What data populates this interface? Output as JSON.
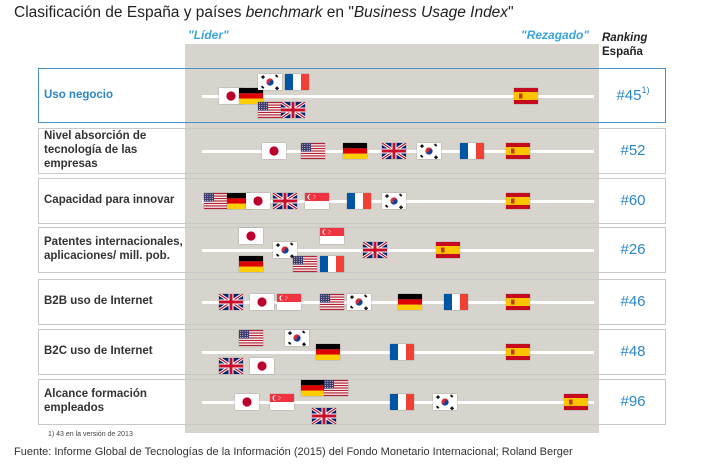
{
  "title": {
    "prefix": "Clasificación de España y países ",
    "italic1": "benchmark",
    "middle": " en \"",
    "italic2": "Business Usage Index",
    "suffix": "\""
  },
  "header": {
    "leader_label": "\"Líder\"",
    "laggard_label": "\"Rezagado\"",
    "ranking_line1": "Ranking",
    "ranking_line2": "España"
  },
  "footnote": "1) 43 en la versión de 2013",
  "source": "Fuente: Informe Global de Tecnologías de la Información (2015) del Fondo Monetario Internacional; Roland Berger",
  "colors": {
    "accent": "#2a86c7",
    "header_accent": "#3aa3dc",
    "panel": "#d7d4cd",
    "highlight_border": "#4a90c8"
  },
  "country_icons": {
    "jp": "japan-flag-icon",
    "de": "germany-flag-icon",
    "kr": "south-korea-flag-icon",
    "us": "usa-flag-icon",
    "fr": "france-flag-icon",
    "gb": "uk-flag-icon",
    "es": "spain-flag-icon",
    "sg": "singapore-flag-icon"
  },
  "chart_data": {
    "type": "scatter",
    "x_axis": "posición relativa de izquierda (\"Líder\") a derecha (\"Rezagado\")",
    "rows": [
      {
        "label": "Uso negocio",
        "rank": "#45",
        "rank_note": "1)",
        "highlight": true,
        "countries": [
          {
            "code": "jp",
            "pos": 0.07,
            "lane": 1
          },
          {
            "code": "de",
            "pos": 0.12,
            "lane": 1
          },
          {
            "code": "kr",
            "pos": 0.17,
            "lane": 0
          },
          {
            "code": "us",
            "pos": 0.17,
            "lane": 2
          },
          {
            "code": "fr",
            "pos": 0.24,
            "lane": 0
          },
          {
            "code": "gb",
            "pos": 0.23,
            "lane": 2
          },
          {
            "code": "es",
            "pos": 0.83,
            "lane": 1
          }
        ]
      },
      {
        "label": "Nivel absorción de tecnología de las empresas",
        "rank": "#52",
        "rank_note": "",
        "highlight": false,
        "countries": [
          {
            "code": "jp",
            "pos": 0.18,
            "lane": 1
          },
          {
            "code": "us",
            "pos": 0.28,
            "lane": 1
          },
          {
            "code": "de",
            "pos": 0.39,
            "lane": 1
          },
          {
            "code": "gb",
            "pos": 0.49,
            "lane": 1
          },
          {
            "code": "kr",
            "pos": 0.58,
            "lane": 1
          },
          {
            "code": "fr",
            "pos": 0.69,
            "lane": 1
          },
          {
            "code": "es",
            "pos": 0.81,
            "lane": 1
          }
        ]
      },
      {
        "label": "Capacidad para innovar",
        "rank": "#60",
        "rank_note": "",
        "highlight": false,
        "countries": [
          {
            "code": "us",
            "pos": 0.03,
            "lane": 1
          },
          {
            "code": "de",
            "pos": 0.09,
            "lane": 1
          },
          {
            "code": "jp",
            "pos": 0.14,
            "lane": 1
          },
          {
            "code": "gb",
            "pos": 0.21,
            "lane": 1
          },
          {
            "code": "sg",
            "pos": 0.29,
            "lane": 1
          },
          {
            "code": "fr",
            "pos": 0.4,
            "lane": 1
          },
          {
            "code": "kr",
            "pos": 0.49,
            "lane": 1
          },
          {
            "code": "es",
            "pos": 0.81,
            "lane": 1
          }
        ]
      },
      {
        "label": "Patentes internacionales, aplicaciones/ mill. pob.",
        "rank": "#26",
        "rank_note": "",
        "highlight": false,
        "countries": [
          {
            "code": "jp",
            "pos": 0.12,
            "lane": 0
          },
          {
            "code": "de",
            "pos": 0.12,
            "lane": 2
          },
          {
            "code": "kr",
            "pos": 0.21,
            "lane": 1
          },
          {
            "code": "us",
            "pos": 0.26,
            "lane": 2
          },
          {
            "code": "sg",
            "pos": 0.33,
            "lane": 0
          },
          {
            "code": "fr",
            "pos": 0.33,
            "lane": 2
          },
          {
            "code": "gb",
            "pos": 0.44,
            "lane": 1
          },
          {
            "code": "es",
            "pos": 0.63,
            "lane": 1
          }
        ]
      },
      {
        "label": "B2B uso de Internet",
        "rank": "#46",
        "rank_note": "",
        "highlight": false,
        "countries": [
          {
            "code": "gb",
            "pos": 0.07,
            "lane": 1
          },
          {
            "code": "jp",
            "pos": 0.15,
            "lane": 1
          },
          {
            "code": "sg",
            "pos": 0.22,
            "lane": 1
          },
          {
            "code": "us",
            "pos": 0.33,
            "lane": 1
          },
          {
            "code": "kr",
            "pos": 0.4,
            "lane": 1
          },
          {
            "code": "de",
            "pos": 0.53,
            "lane": 1
          },
          {
            "code": "fr",
            "pos": 0.65,
            "lane": 1
          },
          {
            "code": "es",
            "pos": 0.81,
            "lane": 1
          }
        ]
      },
      {
        "label": "B2C uso de Internet",
        "rank": "#48",
        "rank_note": "",
        "highlight": false,
        "countries": [
          {
            "code": "us",
            "pos": 0.12,
            "lane": 0
          },
          {
            "code": "gb",
            "pos": 0.07,
            "lane": 2
          },
          {
            "code": "jp",
            "pos": 0.15,
            "lane": 2
          },
          {
            "code": "kr",
            "pos": 0.24,
            "lane": 0
          },
          {
            "code": "de",
            "pos": 0.32,
            "lane": 1
          },
          {
            "code": "fr",
            "pos": 0.51,
            "lane": 1
          },
          {
            "code": "es",
            "pos": 0.81,
            "lane": 1
          }
        ]
      },
      {
        "label": "Alcance formación empleados",
        "rank": "#96",
        "rank_note": "",
        "highlight": false,
        "countries": [
          {
            "code": "jp",
            "pos": 0.11,
            "lane": 1
          },
          {
            "code": "sg",
            "pos": 0.2,
            "lane": 1
          },
          {
            "code": "de",
            "pos": 0.28,
            "lane": 0
          },
          {
            "code": "us",
            "pos": 0.34,
            "lane": 0
          },
          {
            "code": "gb",
            "pos": 0.31,
            "lane": 2
          },
          {
            "code": "fr",
            "pos": 0.51,
            "lane": 1
          },
          {
            "code": "kr",
            "pos": 0.62,
            "lane": 1
          },
          {
            "code": "es",
            "pos": 0.96,
            "lane": 1
          }
        ]
      }
    ]
  }
}
